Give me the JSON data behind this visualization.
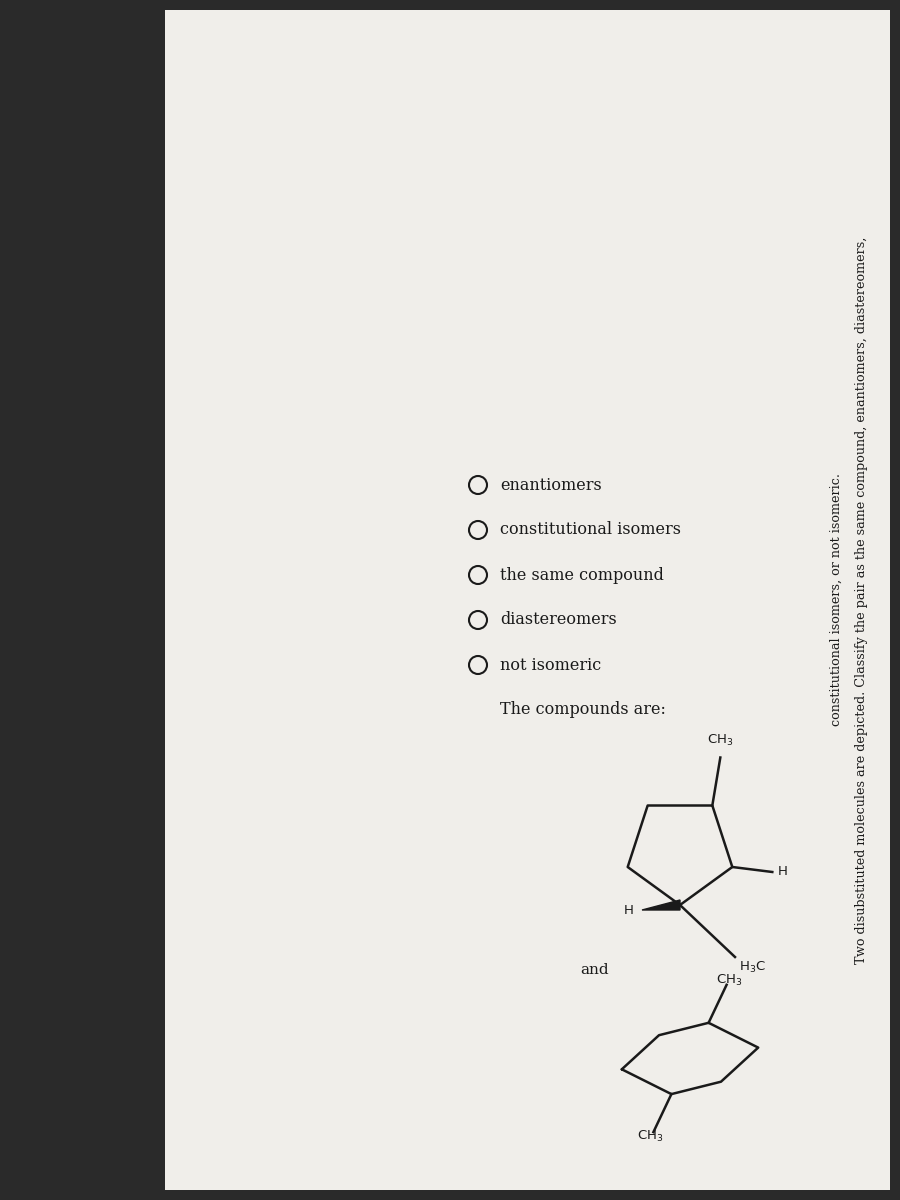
{
  "title_line1": "Two disubstituted molecules are depicted. Classify the pair as the same compound, enantiomers, diastereomers,",
  "title_line2": "constitutional isomers, or not isomeric.",
  "bg_color": "#2a2a2a",
  "paper_color": "#f0eeea",
  "text_color": "#1a1a1a",
  "question_text": "The compounds are:",
  "options": [
    "not isomeric",
    "diastereomers",
    "the same compound",
    "constitutional isomers",
    "enantiomers"
  ],
  "and_text": "and"
}
